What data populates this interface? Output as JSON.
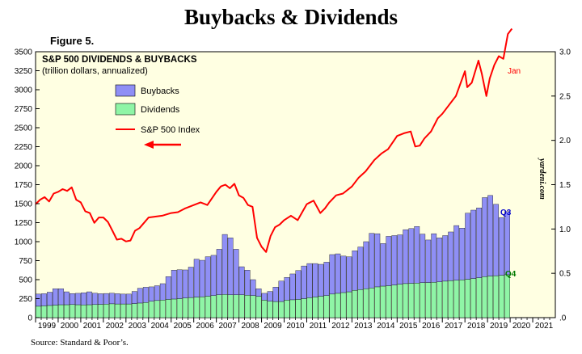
{
  "page": {
    "title": "Buybacks & Dividends",
    "figure_label": "Figure 5.",
    "source": "Source: Standard & Poor’s."
  },
  "chart_data": {
    "type": "bar",
    "title": "S&P 500 DIVIDENDS & BUYBACKS",
    "subtitle": "(trillion dollars, annualized)",
    "watermark": "yardeni.com",
    "legend_placement": "top-left",
    "colors": {
      "buybacks": "#8f8ff5",
      "dividends": "#8ff5a6",
      "index": "#ff0000",
      "background": "#ffffe2"
    },
    "x_tick_labels": [
      "1999",
      "2000",
      "2001",
      "2002",
      "2003",
      "2004",
      "2005",
      "2006",
      "2007",
      "2008",
      "2009",
      "2010",
      "2011",
      "2012",
      "2013",
      "2014",
      "2015",
      "2016",
      "2017",
      "2018",
      "2019",
      "2020",
      "2021"
    ],
    "x_range": [
      1999,
      2022
    ],
    "y_left": {
      "range": [
        0,
        3500
      ],
      "ticks": [
        0,
        250,
        500,
        750,
        1000,
        1250,
        1500,
        1750,
        2000,
        2250,
        2500,
        2750,
        3000,
        3250,
        3500
      ]
    },
    "y_right": {
      "range": [
        0,
        3.0
      ],
      "ticks": [
        ".0",
        "0.5",
        "1.0",
        "1.5",
        "2.0",
        "2.5",
        "3.0"
      ]
    },
    "bars": {
      "x": [
        1999.0,
        1999.25,
        1999.5,
        1999.75,
        2000.0,
        2000.25,
        2000.5,
        2000.75,
        2001.0,
        2001.25,
        2001.5,
        2001.75,
        2002.0,
        2002.25,
        2002.5,
        2002.75,
        2003.0,
        2003.25,
        2003.5,
        2003.75,
        2004.0,
        2004.25,
        2004.5,
        2004.75,
        2005.0,
        2005.25,
        2005.5,
        2005.75,
        2006.0,
        2006.25,
        2006.5,
        2006.75,
        2007.0,
        2007.25,
        2007.5,
        2007.75,
        2008.0,
        2008.25,
        2008.5,
        2008.75,
        2009.0,
        2009.25,
        2009.5,
        2009.75,
        2010.0,
        2010.25,
        2010.5,
        2010.75,
        2011.0,
        2011.25,
        2011.5,
        2011.75,
        2012.0,
        2012.25,
        2012.5,
        2012.75,
        2013.0,
        2013.25,
        2013.5,
        2013.75,
        2014.0,
        2014.25,
        2014.5,
        2014.75,
        2015.0,
        2015.25,
        2015.5,
        2015.75,
        2016.0,
        2016.25,
        2016.5,
        2016.75,
        2017.0,
        2017.25,
        2017.5,
        2017.75,
        2018.0,
        2018.25,
        2018.5,
        2018.75,
        2019.0,
        2019.25,
        2019.5,
        2019.75
      ],
      "series": [
        {
          "name": "Dividends",
          "values": [
            150,
            155,
            160,
            165,
            170,
            170,
            172,
            170,
            168,
            170,
            172,
            175,
            178,
            182,
            180,
            180,
            180,
            185,
            192,
            200,
            215,
            225,
            232,
            240,
            245,
            250,
            258,
            265,
            270,
            275,
            282,
            290,
            300,
            305,
            300,
            300,
            300,
            295,
            290,
            280,
            230,
            215,
            212,
            212,
            230,
            235,
            240,
            250,
            262,
            272,
            282,
            290,
            310,
            320,
            330,
            340,
            360,
            370,
            380,
            390,
            405,
            415,
            420,
            430,
            440,
            448,
            452,
            455,
            460,
            462,
            465,
            470,
            480,
            488,
            492,
            498,
            505,
            515,
            525,
            540,
            548,
            552,
            558,
            565
          ]
        },
        {
          "name": "Buybacks",
          "values": [
            160,
            160,
            175,
            215,
            210,
            170,
            145,
            150,
            160,
            170,
            150,
            140,
            140,
            140,
            135,
            130,
            130,
            160,
            195,
            200,
            190,
            195,
            215,
            300,
            380,
            380,
            370,
            400,
            500,
            480,
            520,
            530,
            600,
            790,
            750,
            600,
            370,
            330,
            210,
            100,
            90,
            130,
            190,
            270,
            300,
            340,
            380,
            430,
            450,
            440,
            420,
            440,
            520,
            520,
            480,
            460,
            520,
            560,
            620,
            720,
            700,
            560,
            650,
            650,
            650,
            710,
            720,
            745,
            640,
            560,
            640,
            580,
            600,
            640,
            720,
            680,
            870,
            900,
            920,
            1040,
            1060,
            940,
            760,
            830
          ]
        }
      ]
    },
    "line": {
      "name": "S&P 500 Index",
      "end_label": "Jan",
      "x": [
        1999.0,
        1999.2,
        1999.4,
        1999.6,
        1999.8,
        2000.0,
        2000.2,
        2000.4,
        2000.6,
        2000.8,
        2001.0,
        2001.2,
        2001.4,
        2001.6,
        2001.8,
        2002.0,
        2002.2,
        2002.4,
        2002.6,
        2002.8,
        2003.0,
        2003.2,
        2003.4,
        2003.6,
        2003.8,
        2004.0,
        2004.3,
        2004.6,
        2005.0,
        2005.3,
        2005.6,
        2006.0,
        2006.3,
        2006.6,
        2007.0,
        2007.2,
        2007.4,
        2007.6,
        2007.8,
        2008.0,
        2008.2,
        2008.4,
        2008.6,
        2008.8,
        2009.0,
        2009.2,
        2009.4,
        2009.6,
        2009.8,
        2010.0,
        2010.3,
        2010.6,
        2011.0,
        2011.3,
        2011.6,
        2011.8,
        2012.0,
        2012.3,
        2012.6,
        2013.0,
        2013.3,
        2013.6,
        2014.0,
        2014.3,
        2014.6,
        2015.0,
        2015.3,
        2015.6,
        2015.8,
        2016.0,
        2016.2,
        2016.5,
        2016.8,
        2017.0,
        2017.3,
        2017.6,
        2018.0,
        2018.1,
        2018.3,
        2018.6,
        2018.75,
        2018.95,
        2019.1,
        2019.3,
        2019.5,
        2019.7,
        2019.9,
        2020.08
      ],
      "values": [
        1.28,
        1.33,
        1.36,
        1.31,
        1.4,
        1.42,
        1.45,
        1.43,
        1.47,
        1.33,
        1.3,
        1.2,
        1.18,
        1.07,
        1.13,
        1.13,
        1.08,
        0.98,
        0.88,
        0.89,
        0.86,
        0.87,
        0.98,
        1.01,
        1.07,
        1.13,
        1.14,
        1.15,
        1.18,
        1.19,
        1.23,
        1.27,
        1.3,
        1.27,
        1.42,
        1.48,
        1.5,
        1.46,
        1.51,
        1.38,
        1.35,
        1.27,
        1.25,
        0.9,
        0.8,
        0.74,
        0.92,
        1.02,
        1.05,
        1.1,
        1.15,
        1.1,
        1.28,
        1.32,
        1.18,
        1.23,
        1.3,
        1.38,
        1.4,
        1.48,
        1.58,
        1.65,
        1.78,
        1.85,
        1.9,
        2.05,
        2.08,
        2.1,
        1.93,
        1.94,
        2.02,
        2.1,
        2.25,
        2.3,
        2.4,
        2.5,
        2.78,
        2.6,
        2.65,
        2.9,
        2.75,
        2.5,
        2.7,
        2.85,
        2.95,
        2.92,
        3.2,
        3.26
      ]
    },
    "legend": [
      "Buybacks",
      "Dividends",
      "S&P 500 Index"
    ],
    "bar_end_labels": {
      "buybacks": "Q3",
      "dividends": "Q4"
    }
  }
}
